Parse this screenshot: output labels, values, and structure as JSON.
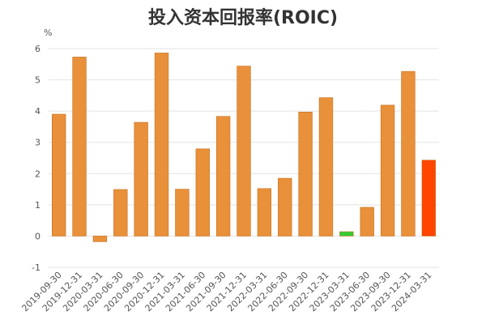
{
  "chart_data": {
    "type": "bar",
    "title": "投入资本回报率(ROIC)",
    "unit": "%",
    "categories": [
      "2019-09-30",
      "2019-12-31",
      "2020-03-31",
      "2020-06-30",
      "2020-09-30",
      "2020-12-31",
      "2021-03-31",
      "2021-06-30",
      "2021-09-30",
      "2021-12-31",
      "2022-03-31",
      "2022-06-30",
      "2022-09-30",
      "2022-12-31",
      "2023-03-31",
      "2023-06-30",
      "2023-09-30",
      "2023-12-31",
      "2024-03-31"
    ],
    "values": [
      3.9,
      5.73,
      -0.18,
      1.49,
      3.64,
      5.86,
      1.5,
      2.79,
      3.83,
      5.44,
      1.52,
      1.85,
      3.97,
      4.43,
      0.14,
      0.92,
      4.19,
      5.27,
      2.43
    ],
    "bar_colors": [
      "#e8903a",
      "#e8903a",
      "#e8903a",
      "#e8903a",
      "#e8903a",
      "#e8903a",
      "#e8903a",
      "#e8903a",
      "#e8903a",
      "#e8903a",
      "#e8903a",
      "#e8903a",
      "#e8903a",
      "#e8903a",
      "#33cc33",
      "#e8903a",
      "#e8903a",
      "#e8903a",
      "#ff4500"
    ],
    "bar_edge_color": "#c87020",
    "ylim": [
      -1,
      6
    ],
    "yticks": [
      -1,
      0,
      1,
      2,
      3,
      4,
      5,
      6
    ],
    "grid": true,
    "legend": "none"
  }
}
